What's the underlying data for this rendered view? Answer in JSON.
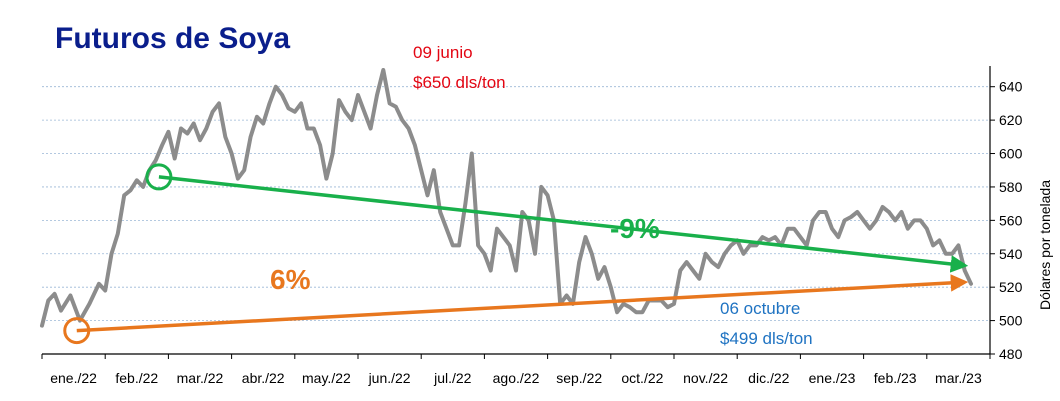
{
  "chart_data": {
    "type": "line",
    "title": "Futuros de Soya",
    "ylabel": "Dólares por tonelada",
    "xlabel": "",
    "ylim": [
      480,
      650
    ],
    "yticks": [
      480,
      500,
      520,
      540,
      560,
      580,
      600,
      620,
      640
    ],
    "grid": true,
    "x_categories": [
      "ene./22",
      "feb./22",
      "mar./22",
      "abr./22",
      "may./22",
      "jun./22",
      "jul./22",
      "ago./22",
      "sep./22",
      "oct./22",
      "nov./22",
      "dic./22",
      "ene./23",
      "feb./23",
      "mar./23"
    ],
    "series": [
      {
        "color": "#8c8c8c",
        "x": [
          0.0,
          0.1,
          0.2,
          0.3,
          0.45,
          0.6,
          0.75,
          0.9,
          1.0,
          1.1,
          1.2,
          1.3,
          1.4,
          1.5,
          1.6,
          1.7,
          1.8,
          1.9,
          2.0,
          2.1,
          2.2,
          2.3,
          2.4,
          2.5,
          2.6,
          2.7,
          2.8,
          2.9,
          3.0,
          3.1,
          3.2,
          3.3,
          3.4,
          3.5,
          3.6,
          3.7,
          3.8,
          3.9,
          4.0,
          4.1,
          4.2,
          4.3,
          4.4,
          4.5,
          4.6,
          4.7,
          4.8,
          4.9,
          5.0,
          5.1,
          5.2,
          5.3,
          5.4,
          5.5,
          5.6,
          5.7,
          5.8,
          5.9,
          6.0,
          6.1,
          6.2,
          6.3,
          6.4,
          6.5,
          6.6,
          6.7,
          6.8,
          6.9,
          7.0,
          7.1,
          7.2,
          7.3,
          7.4,
          7.5,
          7.6,
          7.7,
          7.8,
          7.9,
          8.0,
          8.1,
          8.2,
          8.3,
          8.4,
          8.5,
          8.6,
          8.7,
          8.8,
          8.9,
          9.0,
          9.1,
          9.2,
          9.3,
          9.4,
          9.5,
          9.6,
          9.7,
          9.8,
          9.9,
          10.0,
          10.1,
          10.2,
          10.3,
          10.4,
          10.5,
          10.6,
          10.7,
          10.8,
          10.9,
          11.0,
          11.1,
          11.2,
          11.3,
          11.4,
          11.5,
          11.6,
          11.7,
          11.8,
          11.9,
          12.0,
          12.1,
          12.2,
          12.3,
          12.4,
          12.5,
          12.6,
          12.7,
          12.8,
          12.9,
          13.0,
          13.1,
          13.2,
          13.3,
          13.4,
          13.5,
          13.6,
          13.7,
          13.8,
          13.9,
          14.0,
          14.1,
          14.2,
          14.3,
          14.4,
          14.5,
          14.6,
          14.7
        ],
        "y": [
          497,
          512,
          516,
          506,
          515,
          500,
          510,
          522,
          518,
          540,
          552,
          575,
          578,
          584,
          580,
          590,
          596,
          605,
          613,
          597,
          615,
          612,
          618,
          608,
          615,
          625,
          630,
          610,
          600,
          585,
          590,
          610,
          622,
          618,
          630,
          640,
          635,
          627,
          625,
          630,
          615,
          615,
          605,
          585,
          600,
          632,
          625,
          620,
          635,
          625,
          615,
          635,
          650,
          630,
          628,
          620,
          615,
          605,
          590,
          575,
          590,
          565,
          555,
          545,
          545,
          570,
          600,
          545,
          540,
          530,
          555,
          550,
          545,
          530,
          565,
          560,
          540,
          580,
          575,
          560,
          510,
          515,
          510,
          535,
          550,
          540,
          525,
          532,
          520,
          505,
          510,
          508,
          505,
          505,
          512,
          512,
          512,
          508,
          510,
          530,
          535,
          530,
          525,
          540,
          535,
          532,
          540,
          545,
          548,
          540,
          545,
          545,
          550,
          548,
          550,
          545,
          555,
          555,
          550,
          545,
          560,
          565,
          565,
          555,
          550,
          560,
          562,
          565,
          560,
          555,
          560,
          568,
          565,
          560,
          565,
          555,
          560,
          560,
          555,
          545,
          548,
          540,
          540,
          545,
          530,
          522
        ],
        "annotations": [
          {
            "text_line1": "09 junio",
            "text_line2": "$650 dls/ton",
            "x": 5.35,
            "y": 650,
            "color": "#e30613"
          },
          {
            "text_line1": "06 octubre",
            "text_line2": "$499 dls/ton",
            "x": 9.1,
            "y": 499,
            "color": "#1f73c2"
          }
        ]
      }
    ],
    "trend_lines": [
      {
        "label": "-9%",
        "color": "#19b04b",
        "from": {
          "x": 1.85,
          "y": 586
        },
        "to": {
          "x": 14.6,
          "y": 533
        }
      },
      {
        "label": "6%",
        "color": "#e8771e",
        "from": {
          "x": 0.55,
          "y": 494
        },
        "to": {
          "x": 14.6,
          "y": 523
        }
      }
    ]
  }
}
